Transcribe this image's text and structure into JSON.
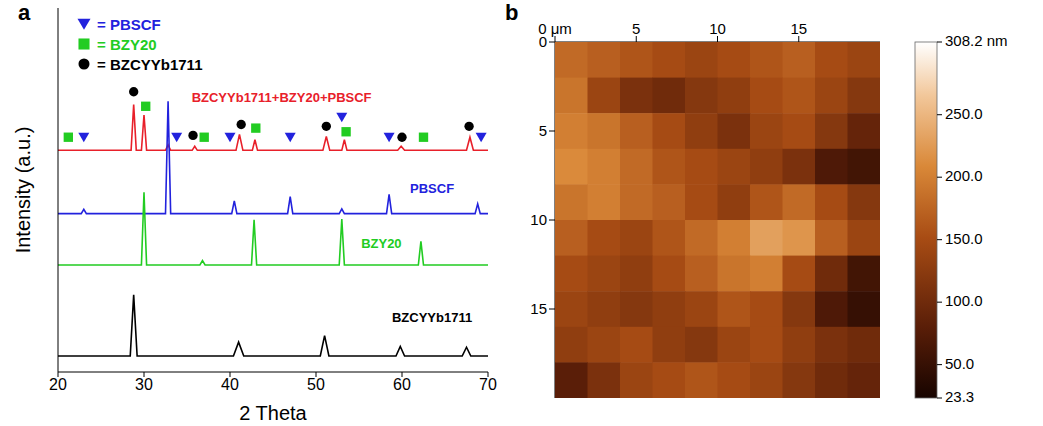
{
  "chart_data": [
    {
      "type": "line",
      "title": "a",
      "xlabel": "2 Theta",
      "ylabel": "Intensity (a.u.)",
      "xlim": [
        20,
        70
      ],
      "ylim": [
        0,
        100
      ],
      "xticks": [
        20,
        30,
        40,
        50,
        60,
        70
      ],
      "tick_labels": "x",
      "legend": "top-left",
      "series": [
        {
          "name": "BZCYYb1711+BZY20+PBSCF",
          "type": "line",
          "color": "#e8202a",
          "x": [
            20,
            28.5,
            28.8,
            29.1,
            29.7,
            30.0,
            30.3,
            32.5,
            32.8,
            33.1,
            35.6,
            35.9,
            36.2,
            40.7,
            41.1,
            41.5,
            42.6,
            42.9,
            43.2,
            50.8,
            51.2,
            51.6,
            53.0,
            53.3,
            53.6,
            59.5,
            59.9,
            60.3,
            67.5,
            67.9,
            68.3,
            70
          ],
          "values": [
            60.9,
            60.9,
            73.5,
            60.9,
            60.9,
            70.6,
            60.9,
            60.9,
            62.4,
            60.9,
            60.9,
            62,
            60.9,
            60.9,
            65.3,
            60.9,
            60.9,
            63.8,
            60.9,
            60.9,
            64.7,
            60.9,
            60.9,
            63.8,
            60.9,
            60.9,
            62,
            60.9,
            60.9,
            64.5,
            60.9,
            60.9
          ]
        },
        {
          "name": "PBSCF",
          "type": "line",
          "color": "#2222dd",
          "x": [
            20,
            22.7,
            23.0,
            23.3,
            32.5,
            32.8,
            33.1,
            40.2,
            40.5,
            40.8,
            46.7,
            47.0,
            47.3,
            52.7,
            53.0,
            53.3,
            58.2,
            58.5,
            58.8,
            68.5,
            68.8,
            69.1,
            70
          ],
          "values": [
            43.5,
            43.5,
            44.7,
            43.5,
            43.5,
            74.4,
            43.5,
            43.5,
            47,
            43.5,
            43.5,
            48.2,
            43.5,
            43.5,
            44.8,
            43.5,
            43.5,
            48.8,
            43.5,
            43.5,
            46.2,
            43.5,
            43.5
          ]
        },
        {
          "name": "BZY20",
          "type": "line",
          "color": "#22cc22",
          "x": [
            20,
            29.7,
            30.0,
            30.3,
            36.5,
            36.8,
            37.1,
            42.5,
            42.8,
            43.1,
            52.7,
            53.0,
            53.3,
            61.9,
            62.2,
            62.5,
            70
          ],
          "values": [
            29.4,
            29.4,
            49.4,
            29.4,
            29.4,
            30.6,
            29.4,
            29.4,
            41.8,
            29.4,
            29.4,
            42,
            29.4,
            29.4,
            35.9,
            29.4,
            29.4
          ]
        },
        {
          "name": "BZCYYb1711",
          "type": "line",
          "color": "#000000",
          "x": [
            20,
            28.4,
            28.8,
            29.2,
            40.4,
            41.0,
            41.6,
            50.5,
            51.0,
            51.5,
            59.3,
            59.8,
            60.3,
            67.0,
            67.5,
            68.0,
            70
          ],
          "values": [
            4.4,
            4.4,
            21.2,
            4.4,
            4.4,
            8.2,
            4.4,
            4.4,
            10,
            4.4,
            4.4,
            7,
            4.4,
            4.4,
            6.8,
            4.4,
            4.4
          ]
        },
        {
          "name": "= PBSCF",
          "type": "scatter",
          "color": "#2222dd",
          "marker": "triangle-down",
          "x": [
            23.0,
            33.8,
            40.0,
            47.0,
            53.0,
            58.5,
            69.2
          ],
          "values": [
            64.5,
            64.5,
            64.5,
            64.5,
            70,
            64.5,
            64.5
          ]
        },
        {
          "name": "= BZY20",
          "type": "scatter",
          "color": "#22cc22",
          "marker": "square",
          "x": [
            21.2,
            30.2,
            37.0,
            43.0,
            53.5,
            62.5
          ],
          "values": [
            64.5,
            73,
            64.5,
            67,
            66,
            64.5
          ]
        },
        {
          "name": "= BZCYYb1711",
          "type": "scatter",
          "color": "#000000",
          "marker": "circle",
          "x": [
            28.8,
            35.7,
            41.3,
            51.2,
            60.0,
            67.8
          ],
          "values": [
            77,
            65,
            68,
            67.5,
            64.5,
            67.5
          ]
        }
      ]
    },
    {
      "type": "heatmap",
      "title": "b",
      "xlim": [
        0,
        20
      ],
      "ylim": [
        0,
        20
      ],
      "xticks": [
        {
          "value": 0,
          "label": "0 μm"
        },
        5,
        10,
        15
      ],
      "yticks": [
        0,
        5,
        10,
        15
      ],
      "cells": [
        [
          180,
          170,
          160,
          150,
          140,
          150,
          160,
          170,
          150,
          140
        ],
        [
          190,
          140,
          110,
          100,
          120,
          130,
          150,
          160,
          140,
          120
        ],
        [
          200,
          190,
          170,
          150,
          130,
          110,
          140,
          150,
          120,
          90
        ],
        [
          210,
          200,
          180,
          160,
          150,
          140,
          130,
          110,
          70,
          60
        ],
        [
          190,
          200,
          180,
          170,
          150,
          130,
          160,
          180,
          150,
          120
        ],
        [
          170,
          150,
          140,
          160,
          180,
          200,
          230,
          220,
          170,
          140
        ],
        [
          150,
          140,
          130,
          150,
          170,
          190,
          200,
          150,
          100,
          60
        ],
        [
          140,
          130,
          120,
          130,
          140,
          160,
          150,
          120,
          70,
          50
        ],
        [
          130,
          140,
          150,
          130,
          120,
          140,
          150,
          130,
          110,
          100
        ],
        [
          80,
          110,
          140,
          150,
          160,
          150,
          140,
          120,
          100,
          90
        ]
      ],
      "zlim": [
        23.3,
        308.2
      ],
      "zticks": [
        {
          "value": 308.2,
          "label": "308.2 nm"
        },
        {
          "value": 250,
          "label": "250.0"
        },
        {
          "value": 200,
          "label": "200.0"
        },
        {
          "value": 150,
          "label": "150.0"
        },
        {
          "value": 100,
          "label": "100.0"
        },
        {
          "value": 50,
          "label": "50.0"
        },
        {
          "value": 23.3,
          "label": "23.3"
        }
      ]
    }
  ]
}
